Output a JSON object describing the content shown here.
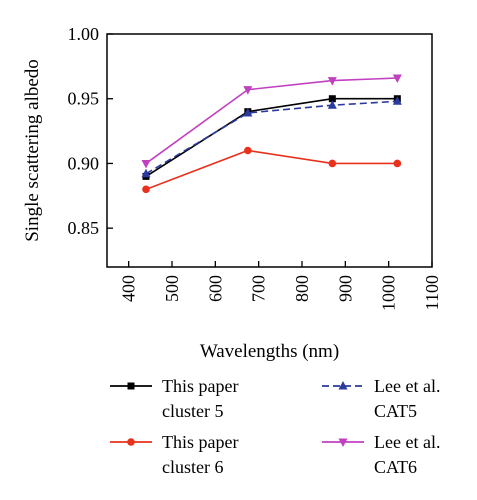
{
  "chart_data": {
    "type": "line",
    "title": "",
    "xlabel": "Wavelengths (nm)",
    "ylabel": "Single scattering albedo",
    "xlim": [
      350,
      1100
    ],
    "ylim": [
      0.82,
      1.0
    ],
    "x_ticks": [
      400,
      500,
      600,
      700,
      800,
      900,
      1000,
      1100
    ],
    "y_ticks": [
      0.85,
      0.9,
      0.95,
      1.0
    ],
    "x_tick_labels": [
      "400",
      "500",
      "600",
      "700",
      "800",
      "900",
      "1000",
      "1100"
    ],
    "y_tick_labels": [
      "0.85",
      "0.90",
      "0.95",
      "1.00"
    ],
    "grid": false,
    "legend_position": "bottom",
    "series": [
      {
        "name": "This paper cluster 5",
        "legend_lines": [
          "This paper",
          "cluster 5"
        ],
        "color": "#000000",
        "marker": "square",
        "line_style": "solid",
        "x": [
          440,
          675,
          870,
          1020
        ],
        "y": [
          0.89,
          0.94,
          0.95,
          0.95
        ]
      },
      {
        "name": "This paper cluster 6",
        "legend_lines": [
          "This paper",
          "cluster 6"
        ],
        "color": "#e8321e",
        "marker": "circle",
        "line_style": "solid",
        "x": [
          440,
          675,
          870,
          1020
        ],
        "y": [
          0.88,
          0.91,
          0.9,
          0.9
        ]
      },
      {
        "name": "Lee et al. CAT5",
        "legend_lines": [
          "Lee et al.",
          "CAT5"
        ],
        "color": "#2b3a9e",
        "marker": "triangle-up",
        "line_style": "dashed",
        "x": [
          440,
          675,
          870,
          1020
        ],
        "y": [
          0.892,
          0.939,
          0.945,
          0.948
        ]
      },
      {
        "name": "Lee et al. CAT6",
        "legend_lines": [
          "Lee et al.",
          "CAT6"
        ],
        "color": "#c040c0",
        "marker": "triangle-down",
        "line_style": "solid",
        "x": [
          440,
          675,
          870,
          1020
        ],
        "y": [
          0.9,
          0.957,
          0.964,
          0.966
        ]
      }
    ]
  }
}
